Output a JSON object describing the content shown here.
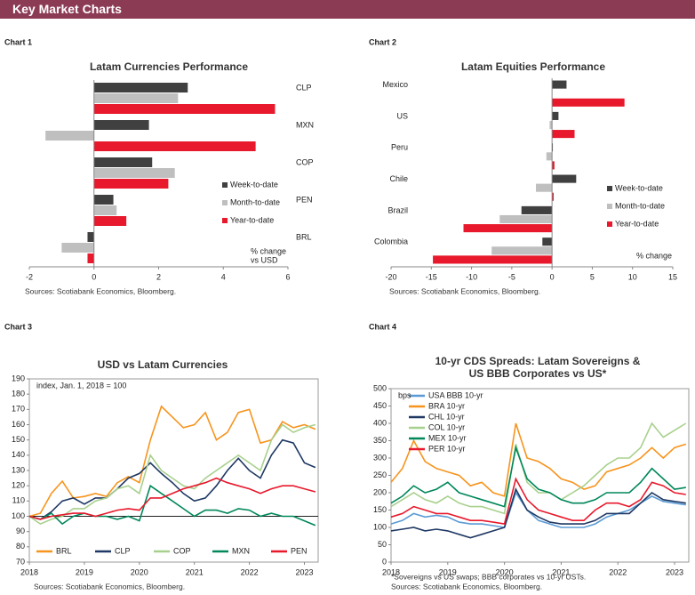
{
  "header": {
    "title": "Key Market Charts"
  },
  "chart_data": [
    {
      "type": "barh",
      "label": "Chart 1",
      "title": "Latam Currencies Performance",
      "source": "Sources: Scotiabank Economics, Bloomberg.",
      "axis_label": [
        "% change",
        "vs USD"
      ],
      "categories": [
        "CLP",
        "MXN",
        "COP",
        "PEN",
        "BRL"
      ],
      "series": [
        {
          "name": "Week-to-date",
          "color": "#404040",
          "values": [
            2.9,
            1.7,
            1.8,
            0.6,
            -0.2
          ]
        },
        {
          "name": "Month-to-date",
          "color": "#bfbfbf",
          "values": [
            2.6,
            -1.5,
            2.5,
            0.7,
            -1.0
          ]
        },
        {
          "name": "Year-to-date",
          "color": "#e8192c",
          "values": [
            5.6,
            5.0,
            2.3,
            1.0,
            -0.2
          ]
        }
      ],
      "xlim": [
        -2,
        6
      ],
      "xticks": [
        -2,
        0,
        2,
        4,
        6
      ]
    },
    {
      "type": "barh",
      "label": "Chart 2",
      "title": "Latam Equities Performance",
      "source": "Sources: Scotiabank Economics, Bloomberg.",
      "axis_label": [
        "% change"
      ],
      "categories": [
        "Mexico",
        "US",
        "Peru",
        "Chile",
        "Brazil",
        "Colombia"
      ],
      "series": [
        {
          "name": "Week-to-date",
          "color": "#404040",
          "values": [
            1.8,
            0.8,
            0.1,
            3.0,
            -3.8,
            -1.2
          ]
        },
        {
          "name": "Month-to-date",
          "color": "#bfbfbf",
          "values": [
            0,
            -0.3,
            -0.7,
            -2.0,
            -6.5,
            -7.5
          ]
        },
        {
          "name": "Year-to-date",
          "color": "#e8192c",
          "values": [
            9.0,
            2.8,
            0.3,
            0.2,
            -11.0,
            -14.8
          ]
        }
      ],
      "xlim": [
        -20,
        15
      ],
      "xticks": [
        -20,
        -15,
        -10,
        -5,
        0,
        5,
        10,
        15
      ]
    },
    {
      "type": "line",
      "label": "Chart 3",
      "title": [
        "USD vs Latam Currencies"
      ],
      "source": "Sources: Scotiabank Economics, Bloomberg.",
      "annotation": "index, Jan. 1, 2018 = 100",
      "hline": 100,
      "x": [
        2018,
        2018.2,
        2018.4,
        2018.6,
        2018.8,
        2019,
        2019.2,
        2019.4,
        2019.6,
        2019.8,
        2020,
        2020.2,
        2020.4,
        2020.6,
        2020.8,
        2021,
        2021.2,
        2021.4,
        2021.6,
        2021.8,
        2022,
        2022.2,
        2022.4,
        2022.6,
        2022.8,
        2023,
        2023.2
      ],
      "series": [
        {
          "name": "BRL",
          "color": "#f7941d",
          "values": [
            100,
            102,
            115,
            123,
            112,
            113,
            115,
            113,
            122,
            126,
            122,
            150,
            172,
            165,
            158,
            160,
            168,
            150,
            155,
            168,
            170,
            148,
            150,
            162,
            158,
            160,
            157
          ]
        },
        {
          "name": "CLP",
          "color": "#1f3864",
          "values": [
            100,
            98,
            103,
            110,
            112,
            108,
            112,
            112,
            118,
            125,
            128,
            135,
            128,
            122,
            115,
            110,
            112,
            120,
            130,
            138,
            130,
            125,
            140,
            150,
            148,
            135,
            132
          ]
        },
        {
          "name": "COP",
          "color": "#a8d08d",
          "values": [
            100,
            95,
            98,
            100,
            105,
            105,
            110,
            112,
            118,
            120,
            115,
            140,
            130,
            125,
            120,
            118,
            125,
            130,
            135,
            140,
            135,
            130,
            150,
            160,
            155,
            158,
            160
          ]
        },
        {
          "name": "MXN",
          "color": "#00875a",
          "values": [
            100,
            98,
            102,
            95,
            100,
            102,
            100,
            100,
            98,
            100,
            97,
            120,
            115,
            110,
            105,
            100,
            104,
            104,
            102,
            105,
            104,
            100,
            102,
            100,
            100,
            97,
            94
          ]
        },
        {
          "name": "PEN",
          "color": "#e8192c",
          "values": [
            100,
            98,
            100,
            101,
            102,
            102,
            100,
            102,
            104,
            105,
            104,
            112,
            112,
            115,
            118,
            120,
            122,
            125,
            122,
            120,
            118,
            115,
            118,
            120,
            120,
            118,
            116
          ]
        }
      ],
      "xlim": [
        2018,
        2023.25
      ],
      "xticks": [
        2018,
        2019,
        2020,
        2021,
        2022,
        2023
      ],
      "ylim": [
        70,
        190
      ],
      "yticks": [
        70,
        80,
        90,
        100,
        110,
        120,
        130,
        140,
        150,
        160,
        170,
        180,
        190
      ],
      "legend": "bottom"
    },
    {
      "type": "line",
      "label": "Chart 4",
      "title": [
        "10-yr CDS Spreads: Latam Sovereigns &",
        "US BBB Corporates vs US*"
      ],
      "source": "Sources: Scotiabank Economics, Bloomberg.",
      "note": "*Sovereigns vs US swaps; BBB corporates vs 10-yr USTs.",
      "annotation": "bps",
      "x": [
        2018,
        2018.2,
        2018.4,
        2018.6,
        2018.8,
        2019,
        2019.2,
        2019.4,
        2019.6,
        2019.8,
        2020,
        2020.2,
        2020.4,
        2020.6,
        2020.8,
        2021,
        2021.2,
        2021.4,
        2021.6,
        2021.8,
        2022,
        2022.2,
        2022.4,
        2022.6,
        2022.8,
        2023,
        2023.2
      ],
      "series": [
        {
          "name": "USA BBB 10-yr",
          "color": "#5b9bd5",
          "values": [
            110,
            120,
            140,
            130,
            135,
            130,
            115,
            110,
            110,
            105,
            100,
            200,
            150,
            120,
            110,
            100,
            100,
            100,
            110,
            130,
            140,
            150,
            170,
            190,
            175,
            170,
            165
          ]
        },
        {
          "name": "BRA 10-yr",
          "color": "#f7941d",
          "values": [
            230,
            270,
            350,
            290,
            270,
            260,
            250,
            220,
            230,
            200,
            190,
            400,
            300,
            290,
            270,
            240,
            230,
            210,
            220,
            260,
            270,
            280,
            300,
            330,
            300,
            330,
            340
          ]
        },
        {
          "name": "CHL 10-yr",
          "color": "#1f3864",
          "values": [
            90,
            95,
            100,
            90,
            95,
            90,
            80,
            70,
            80,
            90,
            100,
            210,
            150,
            130,
            115,
            110,
            110,
            110,
            120,
            140,
            140,
            140,
            170,
            200,
            180,
            175,
            170
          ]
        },
        {
          "name": "COL 10-yr",
          "color": "#a8d08d",
          "values": [
            160,
            180,
            200,
            180,
            170,
            190,
            170,
            160,
            160,
            150,
            140,
            340,
            230,
            200,
            200,
            180,
            200,
            220,
            250,
            280,
            300,
            300,
            330,
            400,
            360,
            380,
            400
          ]
        },
        {
          "name": "MEX 10-yr",
          "color": "#00875a",
          "values": [
            170,
            190,
            220,
            200,
            210,
            230,
            200,
            190,
            180,
            170,
            160,
            330,
            240,
            210,
            200,
            180,
            170,
            170,
            180,
            200,
            200,
            200,
            230,
            270,
            240,
            210,
            215
          ]
        },
        {
          "name": "PER 10-yr",
          "color": "#e8192c",
          "values": [
            130,
            140,
            160,
            150,
            140,
            140,
            130,
            120,
            120,
            115,
            110,
            240,
            180,
            150,
            140,
            130,
            120,
            120,
            150,
            170,
            170,
            160,
            180,
            230,
            220,
            200,
            195
          ]
        }
      ],
      "xlim": [
        2018,
        2023.25
      ],
      "xticks": [
        2018,
        2019,
        2020,
        2021,
        2022,
        2023
      ],
      "ylim": [
        0,
        500
      ],
      "yticks": [
        0,
        50,
        100,
        150,
        200,
        250,
        300,
        350,
        400,
        450,
        500
      ],
      "legend": "top-left"
    }
  ]
}
